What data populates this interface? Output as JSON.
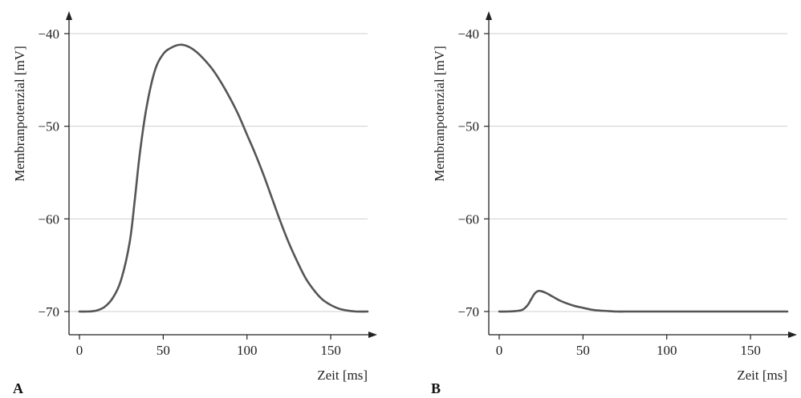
{
  "chart_data": [
    {
      "panel": "A",
      "type": "line",
      "ylabel": "Membranpotenzial [mV]",
      "xlabel": "Zeit [ms]",
      "xlim": [
        0,
        172
      ],
      "ylim": [
        -72.5,
        -38
      ],
      "xticks": [
        0,
        50,
        100,
        150
      ],
      "yticks": [
        -40,
        -50,
        -60,
        -70
      ],
      "ytick_labels": [
        "−40",
        "−50",
        "−60",
        "−70"
      ],
      "grid": true,
      "series": [
        {
          "x": [
            0,
            5,
            10,
            15,
            20,
            25,
            30,
            33,
            36,
            40,
            45,
            50,
            55,
            60,
            65,
            70,
            75,
            80,
            85,
            90,
            95,
            100,
            105,
            110,
            115,
            120,
            125,
            130,
            135,
            140,
            145,
            150,
            155,
            160,
            165,
            172
          ],
          "y": [
            -70,
            -70,
            -69.9,
            -69.5,
            -68.5,
            -66.5,
            -62.5,
            -58.0,
            -53.0,
            -48.0,
            -44.0,
            -42.2,
            -41.5,
            -41.2,
            -41.4,
            -42.0,
            -42.9,
            -44.0,
            -45.4,
            -47.0,
            -48.8,
            -50.9,
            -53.0,
            -55.3,
            -57.8,
            -60.3,
            -62.6,
            -64.6,
            -66.4,
            -67.7,
            -68.7,
            -69.3,
            -69.7,
            -69.9,
            -70.0,
            -70.0
          ]
        }
      ]
    },
    {
      "panel": "B",
      "type": "line",
      "ylabel": "Membranpotenzial [mV]",
      "xlabel": "Zeit [ms]",
      "xlim": [
        0,
        172
      ],
      "ylim": [
        -72.5,
        -38
      ],
      "xticks": [
        0,
        50,
        100,
        150
      ],
      "yticks": [
        -40,
        -50,
        -60,
        -70
      ],
      "ytick_labels": [
        "−40",
        "−50",
        "−60",
        "−70"
      ],
      "grid": true,
      "series": [
        {
          "x": [
            0,
            5,
            10,
            14,
            17,
            19,
            21,
            23,
            25,
            28,
            32,
            36,
            40,
            45,
            50,
            55,
            60,
            65,
            70,
            75,
            80,
            100,
            120,
            140,
            160,
            172
          ],
          "y": [
            -70,
            -70,
            -69.95,
            -69.8,
            -69.3,
            -68.7,
            -68.1,
            -67.8,
            -67.8,
            -68.0,
            -68.4,
            -68.8,
            -69.1,
            -69.4,
            -69.6,
            -69.8,
            -69.9,
            -69.95,
            -70,
            -70,
            -70,
            -70,
            -70,
            -70,
            -70,
            -70
          ]
        }
      ]
    }
  ]
}
